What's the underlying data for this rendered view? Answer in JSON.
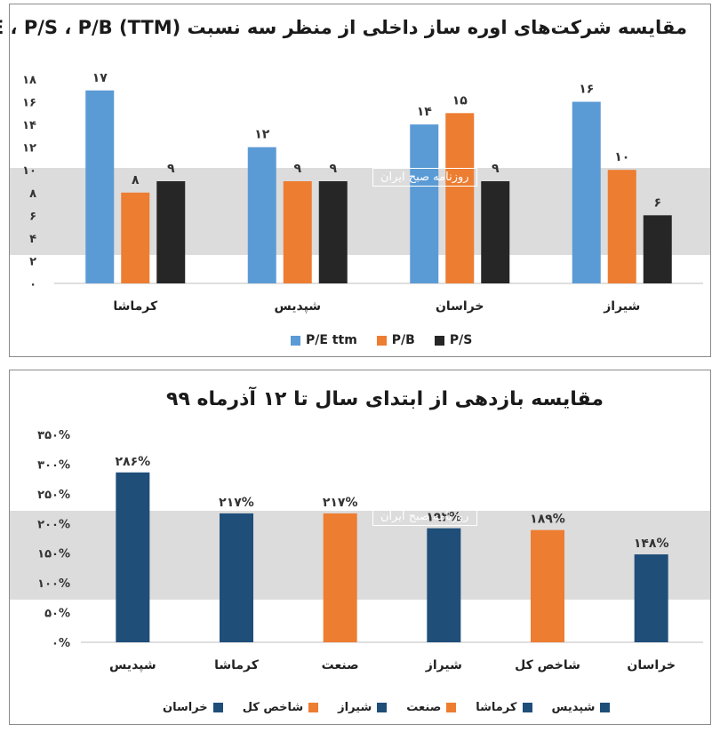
{
  "charts": [
    {
      "title": "مقایسه شرکت‌های اوره ساز داخلی از منظر سه نسبت P/E ، P/S ، P/B (TTM)",
      "watermark": "روزنامه صبح ایران"
    },
    {
      "title": "مقایسه بازدهی از ابتدای سال تا ۱۲ آذرماه ۹۹",
      "watermark": "روزنامه صبح ایران"
    }
  ],
  "colors": {
    "pe": "#5b9bd5",
    "pb": "#ed7d31",
    "ps": "#262626",
    "navy": "#1f4e79",
    "orange": "#ed7d31"
  },
  "chart_data": [
    {
      "type": "bar",
      "title": "مقایسه شرکت‌های اوره ساز داخلی از منظر سه نسبت P/E ، P/S ، P/B (TTM)",
      "categories": [
        "کرماشا",
        "شپدیس",
        "خراسان",
        "شیراز"
      ],
      "series": [
        {
          "name": "P/E ttm",
          "values": [
            17,
            12,
            14,
            16
          ],
          "labels": [
            "۱۷",
            "۱۲",
            "۱۴",
            "۱۶"
          ],
          "color": "#5b9bd5"
        },
        {
          "name": "P/B",
          "values": [
            8,
            9,
            15,
            10
          ],
          "labels": [
            "۸",
            "۹",
            "۱۵",
            "۱۰"
          ],
          "color": "#ed7d31"
        },
        {
          "name": "P/S",
          "values": [
            9,
            9,
            9,
            6
          ],
          "labels": [
            "۹",
            "۹",
            "۹",
            "۶"
          ],
          "color": "#262626"
        }
      ],
      "yticks": [
        "۰",
        "۲",
        "۴",
        "۶",
        "۸",
        "۱۰",
        "۱۲",
        "۱۴",
        "۱۶",
        "۱۸"
      ],
      "ylim": [
        0,
        18
      ],
      "grid": false,
      "legend": "bottom"
    },
    {
      "type": "bar",
      "title": "مقایسه بازدهی از ابتدای سال تا ۱۲ آذرماه ۹۹",
      "categories": [
        "شپدیس",
        "کرماشا",
        "صنعت",
        "شیراز",
        "شاخص کل",
        "خراسان"
      ],
      "values": [
        286,
        217,
        217,
        192,
        189,
        148
      ],
      "labels": [
        "۲۸۶%",
        "۲۱۷%",
        "۲۱۷%",
        "۱۹۲%",
        "۱۸۹%",
        "۱۴۸%"
      ],
      "bar_colors": [
        "#1f4e79",
        "#1f4e79",
        "#ed7d31",
        "#1f4e79",
        "#ed7d31",
        "#1f4e79"
      ],
      "yticks": [
        "۰%",
        "۵۰%",
        "۱۰۰%",
        "۱۵۰%",
        "۲۰۰%",
        "۲۵۰%",
        "۳۰۰%",
        "۳۵۰%"
      ],
      "ylim": [
        0,
        350
      ],
      "grid": false,
      "legend": "bottom"
    }
  ]
}
